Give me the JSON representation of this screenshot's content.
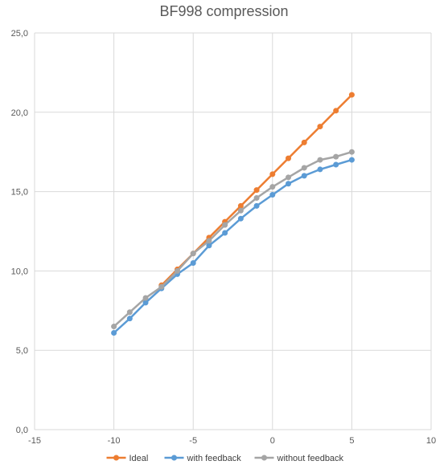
{
  "chart_data": {
    "type": "line",
    "title": "BF998 compression",
    "xlabel": "",
    "ylabel": "",
    "xlim": [
      -15,
      10
    ],
    "ylim": [
      0,
      25
    ],
    "x_ticks": [
      -15,
      -10,
      -5,
      0,
      5,
      10
    ],
    "y_ticks": [
      0,
      5,
      10,
      15,
      20,
      25
    ],
    "x_tick_labels": [
      "-15",
      "-10",
      "-5",
      "0",
      "5",
      "10"
    ],
    "y_tick_labels": [
      "0,0",
      "5,0",
      "10,0",
      "15,0",
      "20,0",
      "25,0"
    ],
    "grid": "vertical and horizontal major gridlines",
    "legend_position": "bottom",
    "x": [
      -10,
      -9,
      -8,
      -7,
      -6,
      -5,
      -4,
      -3,
      -2,
      -1,
      0,
      1,
      2,
      3,
      4,
      5
    ],
    "series": [
      {
        "name": "Ideal",
        "color": "#ED7D31",
        "x": [
          -7,
          -6,
          -5,
          -4,
          -3,
          -2,
          -1,
          0,
          1,
          2,
          3,
          4,
          5
        ],
        "values": [
          9.1,
          10.1,
          11.1,
          12.1,
          13.1,
          14.1,
          15.1,
          16.1,
          17.1,
          18.1,
          19.1,
          20.1,
          21.1
        ]
      },
      {
        "name": "with feedback",
        "color": "#5B9BD5",
        "x": [
          -10,
          -9,
          -8,
          -7,
          -6,
          -5,
          -4,
          -3,
          -2,
          -1,
          0,
          1,
          2,
          3,
          4,
          5
        ],
        "values": [
          6.1,
          7.0,
          8.0,
          8.9,
          9.8,
          10.5,
          11.6,
          12.4,
          13.3,
          14.1,
          14.8,
          15.5,
          16.0,
          16.4,
          16.7,
          17.0
        ]
      },
      {
        "name": "without feedback",
        "color": "#A5A5A5",
        "x": [
          -10,
          -9,
          -8,
          -7,
          -6,
          -5,
          -4,
          -3,
          -2,
          -1,
          0,
          1,
          2,
          3,
          4,
          5
        ],
        "values": [
          6.5,
          7.4,
          8.3,
          9.0,
          10.0,
          11.1,
          11.9,
          12.9,
          13.8,
          14.6,
          15.3,
          15.9,
          16.5,
          17.0,
          17.2,
          17.5
        ]
      }
    ]
  }
}
